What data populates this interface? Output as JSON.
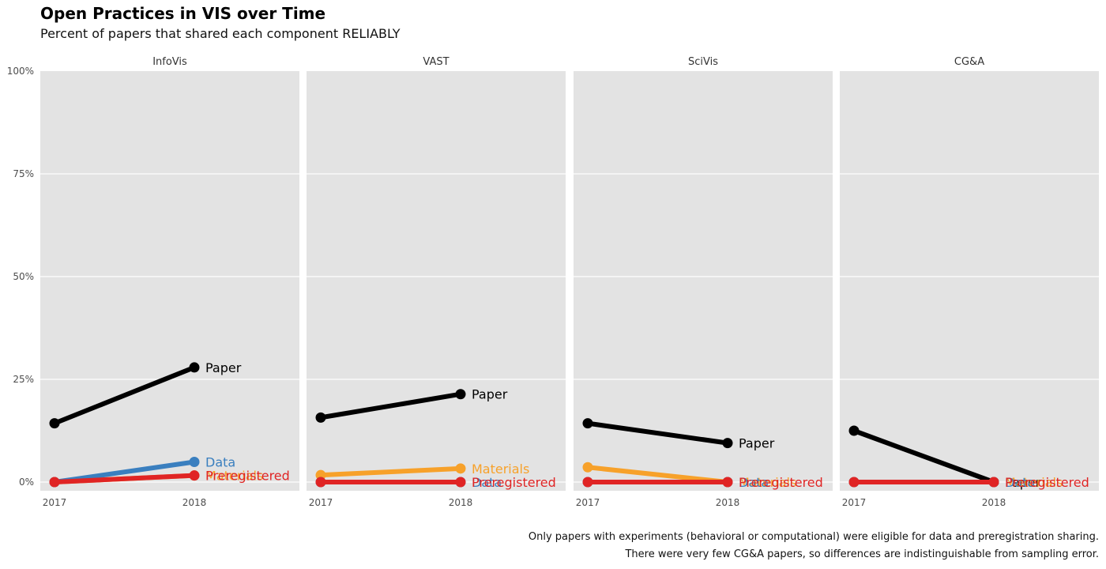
{
  "title": "Open Practices in VIS over Time",
  "subtitle": "Percent of papers that shared each component RELIABLY",
  "captions": [
    "Only papers with experiments (behavioral or computational) were eligible for data and preregistration sharing.",
    "There were very few CG&A papers, so differences are indistinguishable from sampling error."
  ],
  "colors": {
    "panel_background": "#e3e3e3",
    "Paper": "#000000",
    "Data": "#3a7fbf",
    "Materials": "#f7a12a",
    "Preregistered": "#e02424"
  },
  "chart_data": {
    "type": "line",
    "facet_by": "venue",
    "x": [
      "2017",
      "2018"
    ],
    "ylim": [
      0,
      100
    ],
    "y_ticks": [
      "0%",
      "25%",
      "50%",
      "75%",
      "100%"
    ],
    "y_tick_values": [
      0,
      25,
      50,
      75,
      100
    ],
    "grid": true,
    "legend": "direct labels at line ends",
    "panels": [
      {
        "name": "InfoVis",
        "series": [
          {
            "name": "Paper",
            "values": [
              14.3,
              27.9
            ]
          },
          {
            "name": "Materials",
            "values": [
              0,
              1.6
            ]
          },
          {
            "name": "Data",
            "values": [
              0,
              4.9
            ]
          },
          {
            "name": "Preregistered",
            "values": [
              0,
              1.6
            ]
          }
        ]
      },
      {
        "name": "VAST",
        "series": [
          {
            "name": "Paper",
            "values": [
              15.7,
              21.4
            ]
          },
          {
            "name": "Materials",
            "values": [
              1.7,
              3.3
            ]
          },
          {
            "name": "Data",
            "values": [
              0,
              0
            ]
          },
          {
            "name": "Preregistered",
            "values": [
              0,
              0
            ]
          }
        ]
      },
      {
        "name": "SciVis",
        "series": [
          {
            "name": "Paper",
            "values": [
              14.3,
              9.5
            ]
          },
          {
            "name": "Materials",
            "values": [
              3.6,
              0
            ]
          },
          {
            "name": "Data",
            "values": [
              0,
              0
            ]
          },
          {
            "name": "Preregistered",
            "values": [
              0,
              0
            ]
          }
        ]
      },
      {
        "name": "CG&A",
        "series": [
          {
            "name": "Paper",
            "values": [
              12.5,
              0
            ]
          },
          {
            "name": "Materials",
            "values": [
              0,
              0
            ]
          },
          {
            "name": "Data",
            "values": [
              0,
              0
            ]
          },
          {
            "name": "Preregistered",
            "values": [
              0,
              0
            ]
          }
        ]
      }
    ]
  }
}
